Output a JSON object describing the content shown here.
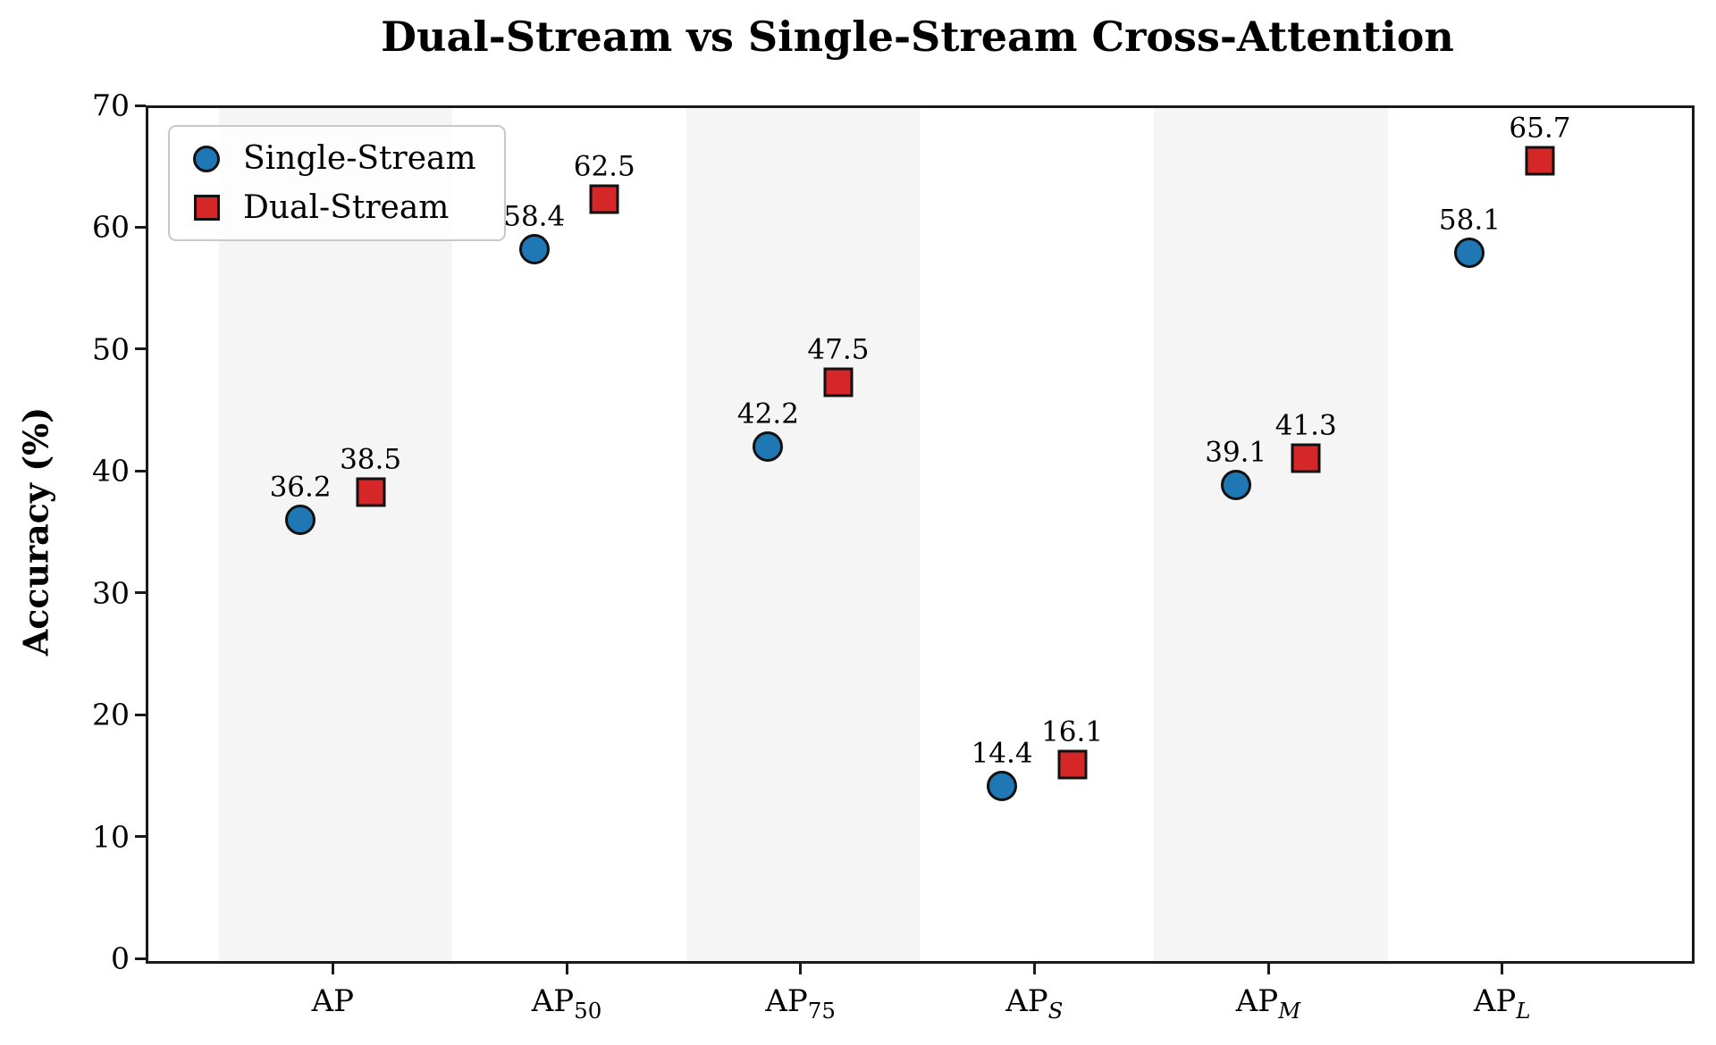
{
  "chart_data": {
    "type": "scatter",
    "title": "Dual-Stream vs Single-Stream Cross-Attention",
    "xlabel": "",
    "ylabel": "Accuracy (%)",
    "ylim": [
      0,
      70
    ],
    "yticks": [
      0,
      10,
      20,
      30,
      40,
      50,
      60,
      70
    ],
    "xlim_category_units": [
      -0.8,
      5.8
    ],
    "grid": false,
    "legend_position": "upper-left",
    "band_color": "#f5f5f5",
    "shaded_category_indices": [
      0,
      2,
      4
    ],
    "categories": [
      {
        "text": "AP",
        "sub": "",
        "italic": false
      },
      {
        "text": "AP",
        "sub": "50",
        "italic": false
      },
      {
        "text": "AP",
        "sub": "75",
        "italic": false
      },
      {
        "text": "AP",
        "sub": "S",
        "italic": true
      },
      {
        "text": "AP",
        "sub": "M",
        "italic": true
      },
      {
        "text": "AP",
        "sub": "L",
        "italic": true
      }
    ],
    "series": [
      {
        "name": "Single-Stream",
        "marker": "circle",
        "color": "#1f77b4",
        "offset_category_units": -0.15,
        "values": [
          36.2,
          58.4,
          42.2,
          14.4,
          39.1,
          58.1
        ]
      },
      {
        "name": "Dual-Stream",
        "marker": "square",
        "color": "#d62728",
        "offset_category_units": 0.15,
        "values": [
          38.5,
          62.5,
          47.5,
          16.1,
          41.3,
          65.7
        ]
      }
    ]
  }
}
